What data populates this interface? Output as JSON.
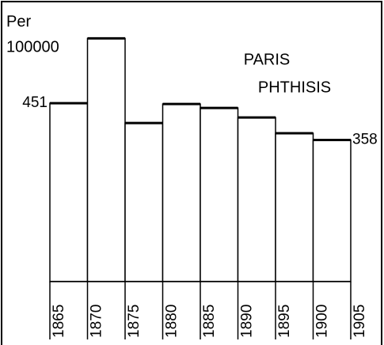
{
  "chart_data": {
    "type": "histogram",
    "title": [
      "PARIS",
      "PHTHISIS"
    ],
    "ylabel": [
      "Per",
      "100000"
    ],
    "bins": [
      1865,
      1870,
      1875,
      1880,
      1885,
      1890,
      1895,
      1900,
      1905
    ],
    "values": [
      451,
      615,
      401,
      449,
      439,
      415,
      375,
      358
    ],
    "value_labels": [
      "451",
      null,
      null,
      null,
      null,
      null,
      null,
      "358"
    ],
    "xlim": [
      1865,
      1905
    ],
    "xticks": [
      1865,
      1870,
      1875,
      1880,
      1885,
      1890,
      1895,
      1900,
      1905
    ],
    "ylim": [
      0,
      680
    ],
    "color": "#ffffff"
  }
}
